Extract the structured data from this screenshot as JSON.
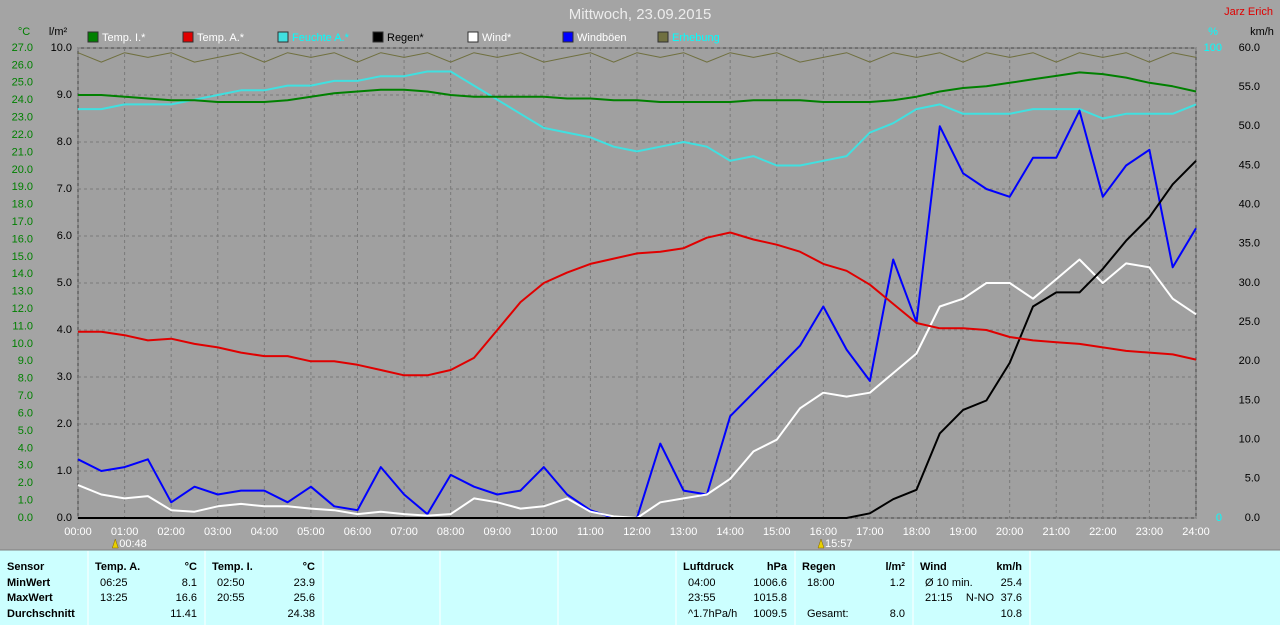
{
  "chart_data": {
    "type": "line",
    "title": "Mittwoch, 23.09.2015",
    "author": "Jarz Erich",
    "x": [
      0,
      0.5,
      1,
      1.5,
      2,
      2.5,
      3,
      3.5,
      4,
      4.5,
      5,
      5.5,
      6,
      6.5,
      7,
      7.5,
      8,
      8.5,
      9,
      9.5,
      10,
      10.5,
      11,
      11.5,
      12,
      12.5,
      13,
      13.5,
      14,
      14.5,
      15,
      15.5,
      16,
      16.5,
      17,
      17.5,
      18,
      18.5,
      19,
      19.5,
      20,
      20.5,
      21,
      21.5,
      22,
      22.5,
      23,
      23.5,
      24
    ],
    "xlim": [
      0,
      24
    ],
    "xticks": [
      {
        "value": 0,
        "label": "00:00"
      },
      {
        "value": 1,
        "label": "01:00"
      },
      {
        "value": 2,
        "label": "02:00"
      },
      {
        "value": 3,
        "label": "03:00"
      },
      {
        "value": 4,
        "label": "04:00"
      },
      {
        "value": 5,
        "label": "05:00"
      },
      {
        "value": 6,
        "label": "06:00"
      },
      {
        "value": 7,
        "label": "07:00"
      },
      {
        "value": 8,
        "label": "08:00"
      },
      {
        "value": 9,
        "label": "09:00"
      },
      {
        "value": 10,
        "label": "10:00"
      },
      {
        "value": 11,
        "label": "11:00"
      },
      {
        "value": 12,
        "label": "12:00"
      },
      {
        "value": 13,
        "label": "13:00"
      },
      {
        "value": 14,
        "label": "14:00"
      },
      {
        "value": 15,
        "label": "15:00"
      },
      {
        "value": 16,
        "label": "16:00"
      },
      {
        "value": 17,
        "label": "17:00"
      },
      {
        "value": 18,
        "label": "18:00"
      },
      {
        "value": 19,
        "label": "19:00"
      },
      {
        "value": 20,
        "label": "20:00"
      },
      {
        "value": 21,
        "label": "21:00"
      },
      {
        "value": 22,
        "label": "22:00"
      },
      {
        "value": 23,
        "label": "23:00"
      },
      {
        "value": 24,
        "label": "24:00"
      }
    ],
    "grid": true,
    "grid_axis": 1,
    "axes": [
      {
        "label": "°C",
        "color": "#008000",
        "lim": [
          0,
          27
        ],
        "ticks": [
          {
            "value": 0,
            "label": "0.0"
          },
          {
            "value": 1,
            "label": "1.0"
          },
          {
            "value": 2,
            "label": "2.0"
          },
          {
            "value": 3,
            "label": "3.0"
          },
          {
            "value": 4,
            "label": "4.0"
          },
          {
            "value": 5,
            "label": "5.0"
          },
          {
            "value": 6,
            "label": "6.0"
          },
          {
            "value": 7,
            "label": "7.0"
          },
          {
            "value": 8,
            "label": "8.0"
          },
          {
            "value": 9,
            "label": "9.0"
          },
          {
            "value": 10,
            "label": "10.0"
          },
          {
            "value": 11,
            "label": "11.0"
          },
          {
            "value": 12,
            "label": "12.0"
          },
          {
            "value": 13,
            "label": "13.0"
          },
          {
            "value": 14,
            "label": "14.0"
          },
          {
            "value": 15,
            "label": "15.0"
          },
          {
            "value": 16,
            "label": "16.0"
          },
          {
            "value": 17,
            "label": "17.0"
          },
          {
            "value": 18,
            "label": "18.0"
          },
          {
            "value": 19,
            "label": "19.0"
          },
          {
            "value": 20,
            "label": "20.0"
          },
          {
            "value": 21,
            "label": "21.0"
          },
          {
            "value": 22,
            "label": "22.0"
          },
          {
            "value": 23,
            "label": "23.0"
          },
          {
            "value": 24,
            "label": "24.0"
          },
          {
            "value": 25,
            "label": "25.0"
          },
          {
            "value": 26,
            "label": "26.0"
          },
          {
            "value": 27,
            "label": "27.0"
          }
        ]
      },
      {
        "label": "l/m²",
        "color": "#000000",
        "lim": [
          0,
          10
        ],
        "ticks": [
          {
            "value": 0,
            "label": "0.0"
          },
          {
            "value": 1,
            "label": "1.0"
          },
          {
            "value": 2,
            "label": "2.0"
          },
          {
            "value": 3,
            "label": "3.0"
          },
          {
            "value": 4,
            "label": "4.0"
          },
          {
            "value": 5,
            "label": "5.0"
          },
          {
            "value": 6,
            "label": "6.0"
          },
          {
            "value": 7,
            "label": "7.0"
          },
          {
            "value": 8,
            "label": "8.0"
          },
          {
            "value": 9,
            "label": "9.0"
          },
          {
            "value": 10,
            "label": "10.0"
          }
        ]
      },
      {
        "label": "%",
        "color": "#00ffff",
        "lim": [
          0,
          100
        ],
        "ticks": [
          0,
          100
        ]
      },
      {
        "label": "km/h",
        "color": "#000000",
        "lim": [
          0,
          60
        ],
        "ticks": [
          {
            "value": 0,
            "label": "0.0"
          },
          {
            "value": 5,
            "label": "5.0"
          },
          {
            "value": 10,
            "label": "10.0"
          },
          {
            "value": 15,
            "label": "15.0"
          },
          {
            "value": 20,
            "label": "20.0"
          },
          {
            "value": 25,
            "label": "25.0"
          },
          {
            "value": 30,
            "label": "30.0"
          },
          {
            "value": 35,
            "label": "35.0"
          },
          {
            "value": 40,
            "label": "40.0"
          },
          {
            "value": 45,
            "label": "45.0"
          },
          {
            "value": 50,
            "label": "50.0"
          },
          {
            "value": 55,
            "label": "55.0"
          },
          {
            "value": 60,
            "label": "60.0"
          }
        ]
      }
    ],
    "series": [
      {
        "name": "Temp. I.*",
        "color": "#008000",
        "label_color": "#ffffff",
        "axis": 0,
        "values": [
          24.3,
          24.3,
          24.2,
          24.1,
          24.0,
          24.0,
          23.9,
          23.9,
          23.9,
          24.0,
          24.2,
          24.4,
          24.5,
          24.6,
          24.6,
          24.5,
          24.3,
          24.2,
          24.2,
          24.2,
          24.2,
          24.1,
          24.1,
          24.0,
          24.0,
          23.9,
          23.9,
          23.9,
          23.9,
          24.0,
          24.0,
          24.0,
          23.9,
          23.9,
          23.9,
          24.0,
          24.2,
          24.5,
          24.7,
          24.8,
          25.0,
          25.2,
          25.4,
          25.6,
          25.5,
          25.3,
          25.0,
          24.8,
          24.5
        ]
      },
      {
        "name": "Temp. A.*",
        "color": "#e00000",
        "label_color": "#ffffff",
        "axis": 0,
        "values": [
          10.7,
          10.7,
          10.5,
          10.2,
          10.3,
          10.0,
          9.8,
          9.5,
          9.3,
          9.3,
          9.0,
          9.0,
          8.8,
          8.5,
          8.2,
          8.2,
          8.5,
          9.2,
          10.8,
          12.4,
          13.5,
          14.1,
          14.6,
          14.9,
          15.2,
          15.3,
          15.5,
          16.1,
          16.4,
          16.0,
          15.7,
          15.3,
          14.6,
          14.2,
          13.4,
          12.3,
          11.2,
          10.9,
          10.9,
          10.8,
          10.4,
          10.2,
          10.1,
          10.0,
          9.8,
          9.6,
          9.5,
          9.4,
          9.1
        ]
      },
      {
        "name": "Feuchte A.*",
        "color": "#40e0e0",
        "label_color": "#00ffff",
        "axis": 2,
        "values": [
          87,
          87,
          88,
          88,
          88,
          89,
          90,
          91,
          91,
          92,
          92,
          93,
          93,
          94,
          94,
          95,
          95,
          92,
          89,
          86,
          83,
          82,
          81,
          79,
          78,
          79,
          80,
          79,
          76,
          77,
          75,
          75,
          76,
          77,
          82,
          84,
          87,
          88,
          86,
          86,
          86,
          87,
          87,
          87,
          85,
          86,
          86,
          86,
          88
        ]
      },
      {
        "name": "Regen*",
        "color": "#000000",
        "label_color": "#000000",
        "axis": 1,
        "values": [
          0,
          0,
          0,
          0,
          0,
          0,
          0,
          0,
          0,
          0,
          0,
          0,
          0,
          0,
          0,
          0,
          0,
          0,
          0,
          0,
          0,
          0,
          0,
          0,
          0,
          0,
          0,
          0,
          0,
          0,
          0,
          0,
          0,
          0,
          0.1,
          0.4,
          0.6,
          1.8,
          2.3,
          2.5,
          3.3,
          4.5,
          4.8,
          4.8,
          5.3,
          5.9,
          6.4,
          7.1,
          7.6
        ]
      },
      {
        "name": "Wind*",
        "color": "#ffffff",
        "label_color": "#ffffff",
        "axis": 3,
        "values": [
          4.2,
          3.0,
          2.5,
          2.8,
          1.0,
          0.8,
          1.5,
          1.8,
          1.5,
          1.5,
          1.2,
          1.0,
          0.5,
          0.8,
          0.5,
          0.3,
          0.5,
          2.5,
          2.0,
          1.2,
          1.5,
          2.5,
          0.8,
          0.2,
          0,
          2.0,
          2.5,
          3.0,
          5.0,
          8.5,
          10.0,
          14.0,
          16.0,
          15.5,
          16.0,
          18.5,
          21.0,
          27.0,
          28.0,
          30.0,
          30.0,
          28.0,
          30.5,
          33.0,
          30.0,
          32.5,
          32.0,
          28.0,
          26.0
        ]
      },
      {
        "name": "Windböen",
        "color": "#0000ff",
        "label_color": "#ffffff",
        "axis": 3,
        "values": [
          7.5,
          6,
          6.5,
          7.5,
          2,
          4,
          3,
          3.5,
          3.5,
          2,
          4,
          1.5,
          1,
          6.5,
          3,
          0.5,
          5.5,
          4,
          3,
          3.5,
          6.5,
          3,
          1,
          0,
          0,
          9.5,
          3.5,
          3,
          13,
          16,
          19,
          22,
          27,
          21.5,
          17.5,
          33,
          25,
          50,
          44,
          42,
          41,
          46,
          46,
          52,
          41,
          45,
          47,
          32,
          37
        ]
      },
      {
        "name": "Erhebung",
        "color": "#707040",
        "label_color": "#00ffff",
        "axis": 2,
        "values": [
          99,
          97,
          99,
          98,
          99,
          97,
          98,
          99,
          97,
          99,
          98,
          99,
          97,
          99,
          98,
          99,
          97,
          99,
          98,
          99,
          97,
          98,
          99,
          97,
          99,
          98,
          99,
          97,
          99,
          98,
          99,
          97,
          98,
          99,
          97,
          99,
          98,
          99,
          97,
          99,
          98,
          99,
          97,
          99,
          98,
          99,
          97,
          99,
          98
        ]
      }
    ],
    "markers": [
      {
        "x": 0.8,
        "label": "00:48"
      },
      {
        "x": 15.95,
        "label": "15:57"
      }
    ],
    "stats": {
      "row_labels": [
        "Sensor",
        "MinWert",
        "MaxWert",
        "Durchschnitt"
      ],
      "columns": [
        {
          "header": "Temp. A.",
          "unit": "°C",
          "rows": [
            {
              "time": "06:25",
              "value": "8.1"
            },
            {
              "time": "13:25",
              "value": "16.6"
            },
            {
              "value": "11.41"
            }
          ]
        },
        {
          "header": "Temp. I.",
          "unit": "°C",
          "rows": [
            {
              "time": "02:50",
              "value": "23.9"
            },
            {
              "time": "20:55",
              "value": "25.6"
            },
            {
              "value": "24.38"
            }
          ]
        },
        {
          "header": "Luftdruck",
          "unit": "hPa",
          "rows": [
            {
              "time": "04:00",
              "value": "1006.6"
            },
            {
              "time": "23:55",
              "value": "1015.8"
            },
            {
              "time": "^1.7hPa/h",
              "value": "1009.5"
            }
          ]
        },
        {
          "header": "Regen",
          "unit": "l/m²",
          "rows": [
            {
              "time": "18:00",
              "value": "1.2"
            },
            null,
            {
              "time": "Gesamt:",
              "value": "8.0"
            }
          ]
        },
        {
          "header": "Wind",
          "unit": "km/h",
          "rows": [
            {
              "time": "Ø 10 min.",
              "value": "25.4"
            },
            {
              "time": "21:15",
              "dir": "N-NO",
              "value": "37.6"
            },
            {
              "value": "10.8"
            }
          ]
        }
      ]
    }
  }
}
